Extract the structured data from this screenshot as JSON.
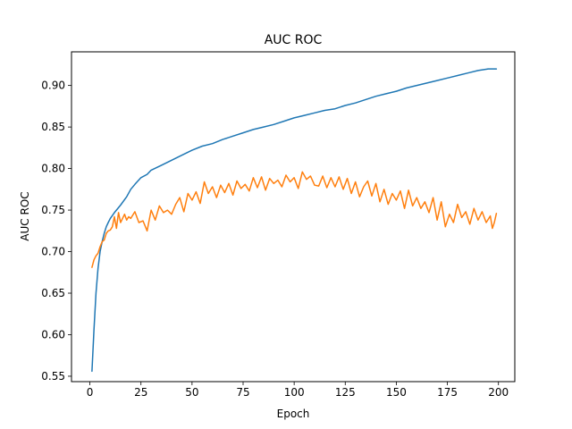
{
  "chart_data": {
    "type": "line",
    "title": "AUC ROC",
    "xlabel": "Epoch",
    "ylabel": "AUC ROC",
    "xlim": [
      -9,
      208
    ],
    "ylim": [
      0.5435,
      0.9405
    ],
    "xticks": [
      0,
      25,
      50,
      75,
      100,
      125,
      150,
      175,
      200
    ],
    "yticks": [
      0.55,
      0.6,
      0.65,
      0.7,
      0.75,
      0.8,
      0.85,
      0.9
    ],
    "ytick_labels": [
      "0.55",
      "0.60",
      "0.65",
      "0.70",
      "0.75",
      "0.80",
      "0.85",
      "0.90"
    ],
    "grid": false,
    "legend": false,
    "series": [
      {
        "color": "#1f77b4",
        "x": [
          1,
          2,
          3,
          4,
          5,
          6,
          7,
          8,
          9,
          10,
          12,
          15,
          18,
          20,
          22,
          25,
          28,
          30,
          35,
          40,
          45,
          50,
          55,
          60,
          65,
          70,
          75,
          80,
          85,
          90,
          95,
          100,
          105,
          110,
          115,
          120,
          125,
          130,
          135,
          140,
          145,
          150,
          155,
          160,
          165,
          170,
          175,
          180,
          185,
          190,
          195,
          199
        ],
        "y": [
          0.556,
          0.605,
          0.65,
          0.68,
          0.7,
          0.712,
          0.722,
          0.73,
          0.735,
          0.74,
          0.747,
          0.756,
          0.766,
          0.775,
          0.781,
          0.789,
          0.793,
          0.798,
          0.804,
          0.81,
          0.816,
          0.822,
          0.827,
          0.83,
          0.835,
          0.839,
          0.843,
          0.847,
          0.85,
          0.853,
          0.857,
          0.861,
          0.864,
          0.867,
          0.87,
          0.872,
          0.876,
          0.879,
          0.883,
          0.887,
          0.89,
          0.893,
          0.897,
          0.9,
          0.903,
          0.906,
          0.909,
          0.912,
          0.915,
          0.918,
          0.92,
          0.92
        ]
      },
      {
        "color": "#ff7f0e",
        "x": [
          1,
          2,
          3,
          4,
          5,
          6,
          7,
          8,
          9,
          10,
          11,
          12,
          13,
          14,
          15,
          16,
          17,
          18,
          19,
          20,
          22,
          24,
          26,
          28,
          30,
          32,
          34,
          36,
          38,
          40,
          42,
          44,
          46,
          48,
          50,
          52,
          54,
          56,
          58,
          60,
          62,
          64,
          66,
          68,
          70,
          72,
          74,
          76,
          78,
          80,
          82,
          84,
          86,
          88,
          90,
          92,
          94,
          96,
          98,
          100,
          102,
          104,
          106,
          108,
          110,
          112,
          114,
          116,
          118,
          120,
          122,
          124,
          126,
          128,
          130,
          132,
          134,
          136,
          138,
          140,
          142,
          144,
          146,
          148,
          150,
          152,
          154,
          156,
          158,
          160,
          162,
          164,
          166,
          168,
          170,
          172,
          174,
          176,
          178,
          180,
          182,
          184,
          186,
          188,
          190,
          192,
          194,
          196,
          197,
          198,
          199
        ],
        "y": [
          0.681,
          0.69,
          0.695,
          0.698,
          0.706,
          0.712,
          0.714,
          0.722,
          0.725,
          0.726,
          0.73,
          0.742,
          0.728,
          0.747,
          0.735,
          0.74,
          0.745,
          0.738,
          0.742,
          0.74,
          0.748,
          0.735,
          0.737,
          0.725,
          0.75,
          0.738,
          0.755,
          0.747,
          0.75,
          0.745,
          0.757,
          0.765,
          0.748,
          0.77,
          0.762,
          0.772,
          0.758,
          0.784,
          0.77,
          0.778,
          0.765,
          0.78,
          0.771,
          0.782,
          0.768,
          0.785,
          0.776,
          0.781,
          0.773,
          0.789,
          0.777,
          0.79,
          0.774,
          0.788,
          0.782,
          0.786,
          0.778,
          0.792,
          0.784,
          0.789,
          0.776,
          0.796,
          0.787,
          0.791,
          0.78,
          0.779,
          0.791,
          0.777,
          0.789,
          0.778,
          0.79,
          0.775,
          0.788,
          0.77,
          0.784,
          0.766,
          0.778,
          0.785,
          0.767,
          0.782,
          0.76,
          0.775,
          0.757,
          0.77,
          0.762,
          0.773,
          0.752,
          0.774,
          0.755,
          0.765,
          0.752,
          0.76,
          0.747,
          0.765,
          0.738,
          0.76,
          0.73,
          0.745,
          0.735,
          0.757,
          0.741,
          0.748,
          0.733,
          0.752,
          0.738,
          0.748,
          0.735,
          0.743,
          0.728,
          0.735,
          0.746
        ]
      }
    ]
  }
}
